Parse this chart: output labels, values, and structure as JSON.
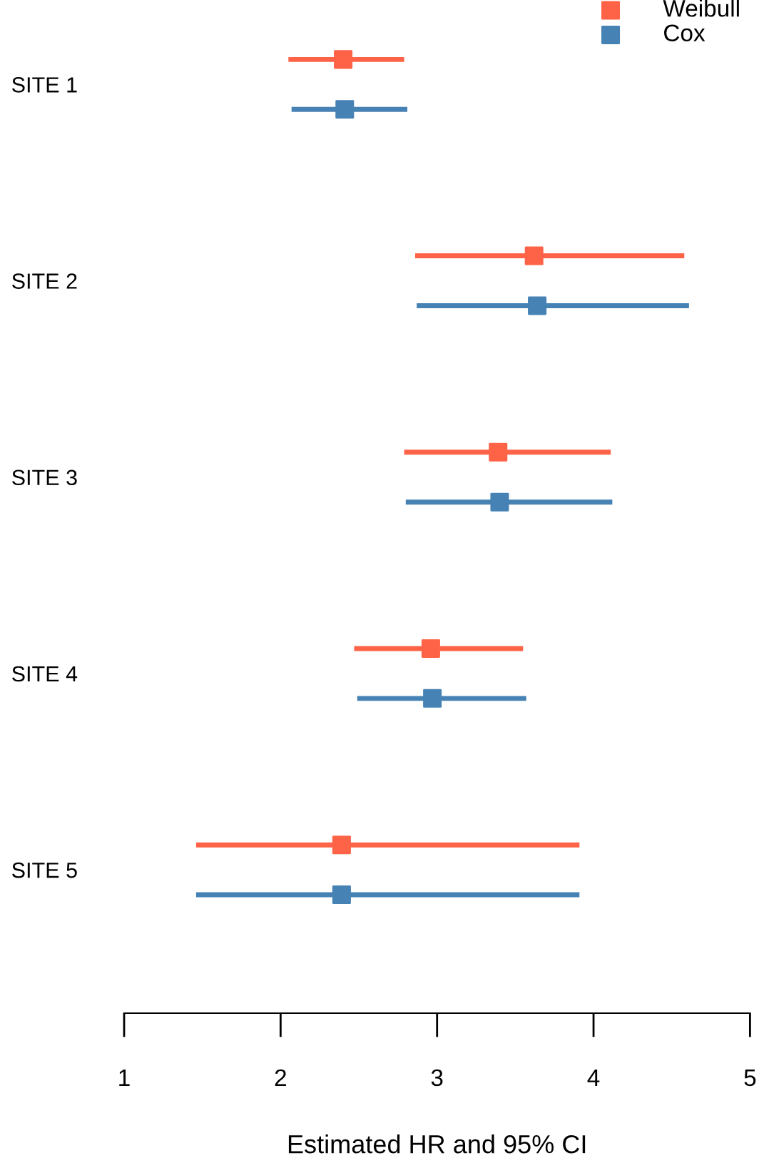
{
  "chart_data": {
    "type": "scatter",
    "orientation": "horizontal",
    "xlabel": "Estimated HR and 95% CI",
    "categories": [
      "SITE 1",
      "SITE 2",
      "SITE 3",
      "SITE 4",
      "SITE 5"
    ],
    "series": [
      {
        "name": "Weibull",
        "color": "#ff6347",
        "values": [
          2.4,
          3.62,
          3.39,
          2.96,
          2.39
        ],
        "errors": [
          [
            2.05,
            2.79
          ],
          [
            2.86,
            4.58
          ],
          [
            2.79,
            4.11
          ],
          [
            2.47,
            3.55
          ],
          [
            1.46,
            3.91
          ]
        ]
      },
      {
        "name": "Cox",
        "color": "#4682b4",
        "values": [
          2.41,
          3.64,
          3.4,
          2.97,
          2.39
        ],
        "errors": [
          [
            2.07,
            2.81
          ],
          [
            2.87,
            4.61
          ],
          [
            2.8,
            4.12
          ],
          [
            2.49,
            3.57
          ],
          [
            1.46,
            3.91
          ]
        ]
      }
    ],
    "xlim": [
      1,
      5
    ],
    "xticks": [
      1,
      2,
      3,
      4,
      5
    ],
    "marker": "square",
    "legend": "top right",
    "grid": false
  }
}
